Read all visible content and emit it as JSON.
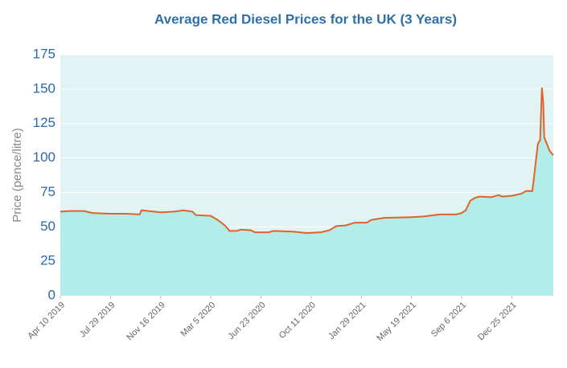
{
  "chart_data": {
    "type": "area",
    "title": "Average Red Diesel Prices for the UK (3 Years)",
    "y_label": "Price (pence/litre)",
    "color": "#e2622b",
    "fill_color": "#b3ede9",
    "plot_background": "#e1f3f2",
    "grid": true,
    "x": [
      "2019-04-10",
      "2019-05-01",
      "2019-06-01",
      "2019-06-20",
      "2019-07-29",
      "2019-09-01",
      "2019-10-01",
      "2019-10-05",
      "2019-11-16",
      "2019-12-15",
      "2020-01-05",
      "2020-01-25",
      "2020-02-01",
      "2020-03-05",
      "2020-03-20",
      "2020-04-05",
      "2020-04-15",
      "2020-05-01",
      "2020-05-10",
      "2020-06-01",
      "2020-06-10",
      "2020-07-10",
      "2020-07-20",
      "2020-09-01",
      "2020-10-01",
      "2020-11-01",
      "2020-11-20",
      "2020-12-05",
      "2020-12-25",
      "2021-01-15",
      "2021-02-10",
      "2021-02-20",
      "2021-03-20",
      "2021-05-19",
      "2021-06-15",
      "2021-07-20",
      "2021-08-25",
      "2021-09-06",
      "2021-09-15",
      "2021-09-25",
      "2021-10-05",
      "2021-10-15",
      "2021-11-10",
      "2021-11-25",
      "2021-12-05",
      "2021-12-25",
      "2022-01-15",
      "2022-01-25",
      "2022-02-08",
      "2022-02-12",
      "2022-02-20",
      "2022-02-25",
      "2022-03-01",
      "2022-03-04",
      "2022-03-06",
      "2022-03-12",
      "2022-03-18",
      "2022-03-26"
    ],
    "values": [
      61,
      61.5,
      61.5,
      60,
      59.5,
      59.5,
      59,
      62,
      60.5,
      61,
      62,
      61,
      58.5,
      58,
      55,
      51,
      47,
      47,
      48,
      47.5,
      46,
      46,
      47,
      46.5,
      45.5,
      46,
      47.5,
      50.5,
      51,
      53,
      53,
      55,
      56.5,
      57,
      57.5,
      59,
      59,
      60,
      62,
      69,
      71,
      72,
      71.5,
      73,
      72,
      72.5,
      74,
      76,
      76,
      87,
      110,
      113,
      151,
      140,
      115,
      110,
      105,
      102
    ],
    "xlim": [
      "2019-04-10",
      "2022-03-26"
    ],
    "xticks": [
      {
        "value": "2019-04-10",
        "label": "Apr 10 2019"
      },
      {
        "value": "2019-07-29",
        "label": "Jul 29 2019"
      },
      {
        "value": "2019-11-16",
        "label": "Nov 16 2019"
      },
      {
        "value": "2020-03-05",
        "label": "Mar 5 2020"
      },
      {
        "value": "2020-06-23",
        "label": "Jun 23 2020"
      },
      {
        "value": "2020-10-11",
        "label": "Oct 11 2020"
      },
      {
        "value": "2021-01-29",
        "label": "Jan 29 2021"
      },
      {
        "value": "2021-05-19",
        "label": "May 19 2021"
      },
      {
        "value": "2021-09-06",
        "label": "Sep 6 2021"
      },
      {
        "value": "2021-12-25",
        "label": "Dec 25 2021"
      }
    ],
    "ylim": [
      0,
      175
    ],
    "yticks": [
      0,
      25,
      50,
      75,
      100,
      125,
      150,
      175
    ]
  }
}
